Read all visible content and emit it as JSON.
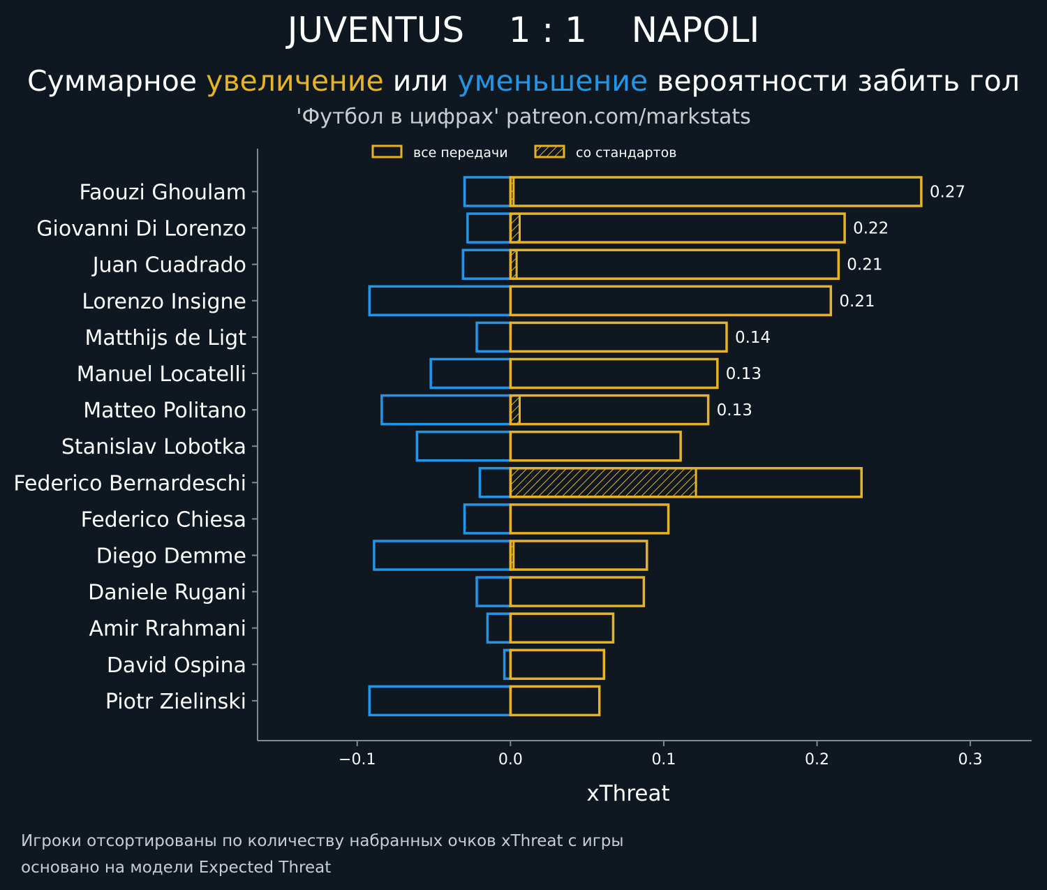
{
  "header": {
    "home_team": "JUVENTUS",
    "score": "1 : 1",
    "away_team": "NAPOLI",
    "subtitle_part1": "Суммарное ",
    "subtitle_increase": "увеличение",
    "subtitle_part2": " или ",
    "subtitle_decrease": "уменьшение",
    "subtitle_part3": " вероятности забить гол",
    "credit": "'Футбол в цифрах' patreon.com/markstats"
  },
  "footer": {
    "note1": "Игроки отсортированы по количеству набранных очков xThreat с игры",
    "note2": "основано на модели Expected Threat"
  },
  "colors": {
    "background": "#0f1820",
    "positive": "#e6b422",
    "negative": "#2196e8",
    "axis": "#7f8a94",
    "text": "#ffffff",
    "muted": "#c8cdd2"
  },
  "chart_data": {
    "type": "bar",
    "orientation": "horizontal",
    "xlabel": "xThreat",
    "xlim": [
      -0.165,
      0.34
    ],
    "xticks": [
      -0.1,
      0.0,
      0.1,
      0.2,
      0.3
    ],
    "xtick_labels": [
      "−0.1",
      "0.0",
      "0.1",
      "0.2",
      "0.3"
    ],
    "legend": {
      "placement": "top-center",
      "entries": [
        "все передачи",
        "со стандартов"
      ]
    },
    "categories": [
      "Faouzi Ghoulam",
      "Giovanni Di Lorenzo",
      "Juan Cuadrado",
      "Lorenzo Insigne",
      "Matthijs de Ligt",
      "Manuel Locatelli",
      "Matteo Politano",
      "Stanislav Lobotka",
      "Federico Bernardeschi",
      "Federico Chiesa",
      "Diego Demme",
      "Daniele Rugani",
      "Amir Rrahmani",
      "David Ospina",
      "Piotr Zielinski"
    ],
    "series": [
      {
        "name": "все передачи",
        "values": [
          0.268,
          0.218,
          0.214,
          0.209,
          0.141,
          0.135,
          0.129,
          0.111,
          0.229,
          0.103,
          0.089,
          0.087,
          0.067,
          0.061,
          0.058
        ]
      },
      {
        "name": "со стандартов",
        "values": [
          0.002,
          0.006,
          0.004,
          0.0,
          0.0,
          0.0,
          0.006,
          0.0,
          0.121,
          0.0,
          0.002,
          0.0,
          0.0,
          0.0,
          0.0
        ]
      },
      {
        "values": [
          -0.03,
          -0.028,
          -0.031,
          -0.092,
          -0.022,
          -0.052,
          -0.084,
          -0.061,
          -0.02,
          -0.03,
          -0.089,
          -0.022,
          -0.015,
          -0.004,
          -0.092
        ]
      }
    ],
    "data_labels": [
      "0.27",
      "0.22",
      "0.21",
      "0.21",
      "0.14",
      "0.13",
      "0.13",
      "",
      "",
      "",
      "",
      "",
      "",
      "",
      ""
    ]
  }
}
